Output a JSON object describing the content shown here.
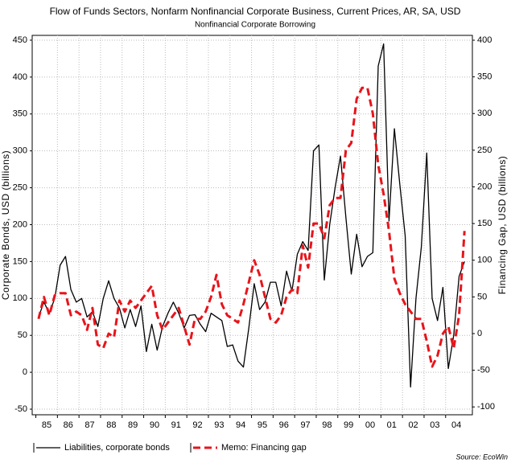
{
  "chart_data": {
    "type": "line",
    "subtitle": "Flow of Funds Sectors, Nonfarm Nonfinancial Corporate Business, Current Prices, AR, SA, USD",
    "subtitle2": "Nonfinancial Corporate Borrowing",
    "y_label": "Corporate Bonds, USD (billions)",
    "y2_label": "Financing Gap, USD (billions)",
    "source": "Source: EcoWin",
    "grid": true,
    "x": [
      1985.125,
      1985.375,
      1985.625,
      1985.875,
      1986.125,
      1986.375,
      1986.625,
      1986.875,
      1987.125,
      1987.375,
      1987.625,
      1987.875,
      1988.125,
      1988.375,
      1988.625,
      1988.875,
      1989.125,
      1989.375,
      1989.625,
      1989.875,
      1990.125,
      1990.375,
      1990.625,
      1990.875,
      1991.125,
      1991.375,
      1991.625,
      1991.875,
      1992.125,
      1992.375,
      1992.625,
      1992.875,
      1993.125,
      1993.375,
      1993.625,
      1993.875,
      1994.125,
      1994.375,
      1994.625,
      1994.875,
      1995.125,
      1995.375,
      1995.625,
      1995.875,
      1996.125,
      1996.375,
      1996.625,
      1996.875,
      1997.125,
      1997.375,
      1997.625,
      1997.875,
      1998.125,
      1998.375,
      1998.625,
      1998.875,
      1999.125,
      1999.375,
      1999.625,
      1999.875,
      2000.125,
      2000.375,
      2000.625,
      2000.875,
      2001.125,
      2001.375,
      2001.625,
      2001.875,
      2002.125,
      2002.375,
      2002.625,
      2002.875,
      2003.125,
      2003.375,
      2003.625,
      2003.875,
      2004.125,
      2004.375,
      2004.625,
      2004.875
    ],
    "xlim": [
      1984.83,
      2005.24
    ],
    "xticks": [
      {
        "value": 1985.5,
        "label": "85"
      },
      {
        "value": 1986.5,
        "label": "86"
      },
      {
        "value": 1987.5,
        "label": "87"
      },
      {
        "value": 1988.5,
        "label": "88"
      },
      {
        "value": 1989.5,
        "label": "89"
      },
      {
        "value": 1990.5,
        "label": "90"
      },
      {
        "value": 1991.5,
        "label": "91"
      },
      {
        "value": 1992.5,
        "label": "92"
      },
      {
        "value": 1993.5,
        "label": "93"
      },
      {
        "value": 1994.5,
        "label": "94"
      },
      {
        "value": 1995.5,
        "label": "95"
      },
      {
        "value": 1996.5,
        "label": "96"
      },
      {
        "value": 1997.5,
        "label": "97"
      },
      {
        "value": 1998.5,
        "label": "98"
      },
      {
        "value": 1999.5,
        "label": "99"
      },
      {
        "value": 2000.5,
        "label": "00"
      },
      {
        "value": 2001.5,
        "label": "01"
      },
      {
        "value": 2002.5,
        "label": "02"
      },
      {
        "value": 2003.5,
        "label": "03"
      },
      {
        "value": 2004.5,
        "label": "04"
      }
    ],
    "ylim": [
      -57.6,
      456.5
    ],
    "yticks": [
      -50,
      0,
      50,
      100,
      150,
      200,
      250,
      300,
      350,
      400,
      450
    ],
    "y2lim": [
      -110.7,
      406.6
    ],
    "y2ticks": [
      -100,
      -50,
      0,
      50,
      100,
      150,
      200,
      250,
      300,
      350,
      400
    ],
    "series": [
      {
        "name": "Liabilities, corporate bonds",
        "color": "#000000",
        "dash": false,
        "values": [
          75,
          95,
          80,
          100,
          145,
          157,
          112,
          95,
          100,
          75,
          82,
          62,
          100,
          124,
          100,
          87,
          60,
          85,
          62,
          90,
          28,
          65,
          30,
          62,
          80,
          95,
          80,
          60,
          77,
          78,
          65,
          55,
          80,
          75,
          70,
          35,
          37,
          15,
          7,
          60,
          120,
          85,
          95,
          122,
          122,
          90,
          137,
          110,
          160,
          177,
          165,
          300,
          308,
          125,
          200,
          250,
          293,
          210,
          133,
          187,
          143,
          157,
          162,
          415,
          445,
          205,
          330,
          255,
          185,
          -20,
          100,
          170,
          297,
          100,
          70,
          115,
          5,
          50,
          130,
          150
        ]
      },
      {
        "name": "Memo: Financing gap",
        "color": "#e8141b",
        "dash": true,
        "axis": "y2",
        "values": [
          20,
          50,
          25,
          52,
          55,
          55,
          25,
          30,
          25,
          5,
          35,
          -15,
          -20,
          0,
          -5,
          45,
          30,
          45,
          35,
          45,
          55,
          65,
          25,
          5,
          15,
          25,
          35,
          10,
          -15,
          20,
          20,
          30,
          50,
          80,
          40,
          25,
          20,
          15,
          40,
          70,
          100,
          80,
          50,
          20,
          15,
          25,
          50,
          60,
          55,
          120,
          90,
          150,
          150,
          130,
          175,
          185,
          185,
          250,
          260,
          320,
          335,
          335,
          300,
          230,
          190,
          140,
          75,
          55,
          40,
          30,
          20,
          20,
          -10,
          -45,
          -30,
          0,
          10,
          -20,
          25,
          140
        ]
      }
    ]
  }
}
